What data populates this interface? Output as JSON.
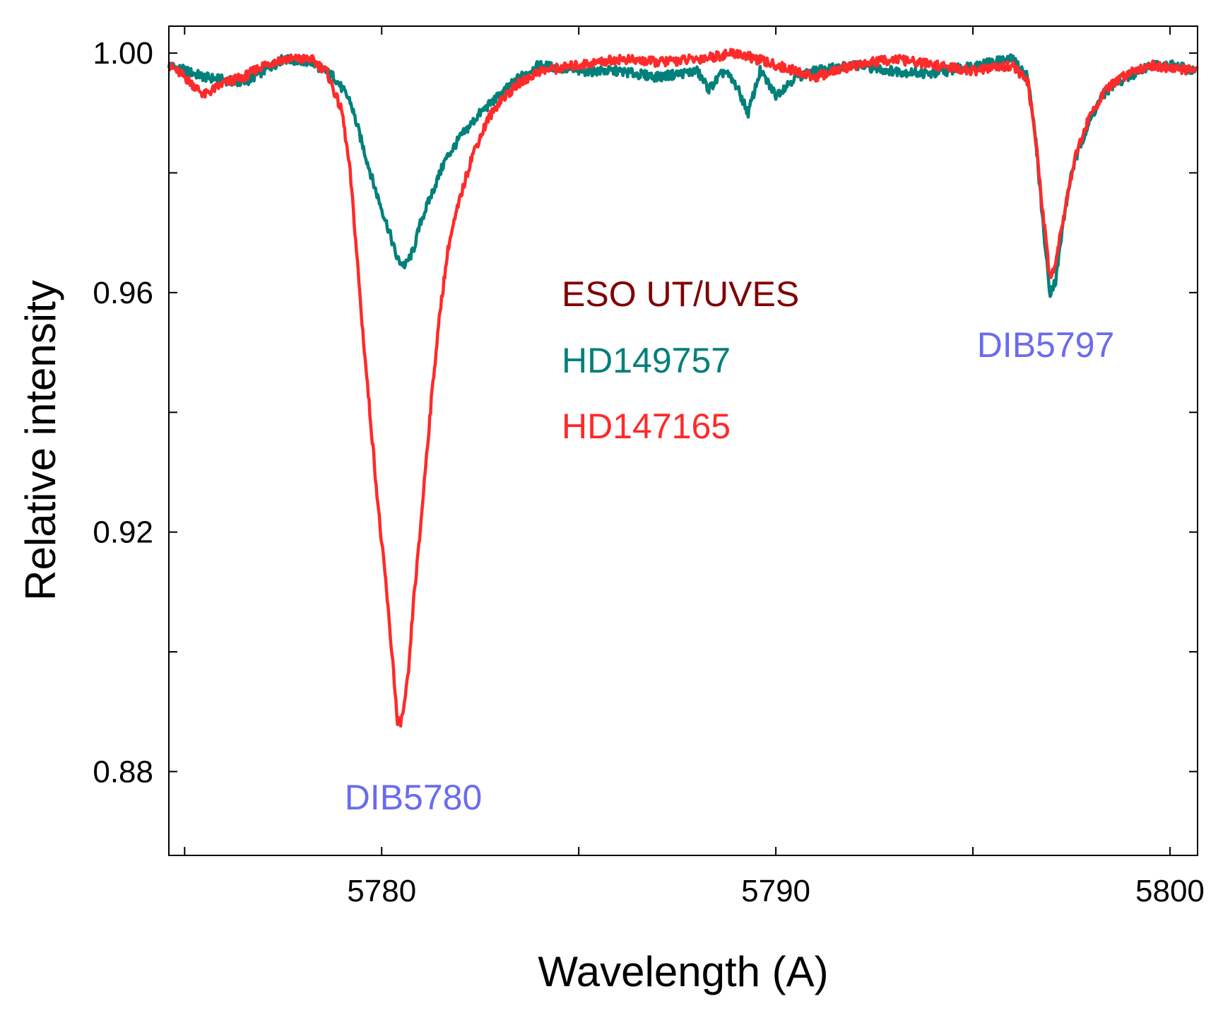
{
  "chart_data": {
    "type": "line",
    "title": "",
    "xlabel": "Wavelength (A)",
    "ylabel": "Relative intensity",
    "xlim": [
      5774.6,
      5800.7
    ],
    "ylim": [
      0.866,
      1.0045
    ],
    "x_ticks": [
      5780,
      5790,
      5800
    ],
    "x_tick_labels": [
      "5780",
      "5790",
      "5800"
    ],
    "x_minor_ticks": [
      5775,
      5785,
      5795
    ],
    "y_ticks": [
      0.88,
      0.92,
      0.96,
      1.0
    ],
    "y_tick_labels": [
      "0.88",
      "0.92",
      "0.96",
      "1.00"
    ],
    "y_minor_ticks": [
      0.9,
      0.94,
      0.98
    ],
    "grid": false,
    "legend": {
      "placement": "center",
      "title": "ESO UT/UVES",
      "title_color": "#800000",
      "entries": [
        "HD149757",
        "HD147165"
      ]
    },
    "annotations": [
      {
        "text": "DIB5780",
        "x": 5780.8,
        "y": 0.8795,
        "color": "#6b6bef"
      },
      {
        "text": "DIB5797",
        "x": 5797.0,
        "y": 0.9552,
        "color": "#6b6bef"
      }
    ],
    "series": [
      {
        "name": "HD149757",
        "color": "#00807a",
        "points": [
          [
            5774.6,
            0.998
          ],
          [
            5775.5,
            0.996
          ],
          [
            5776.5,
            0.995
          ],
          [
            5777.5,
            0.999
          ],
          [
            5778.2,
            0.9985
          ],
          [
            5778.8,
            0.996
          ],
          [
            5779.2,
            0.992
          ],
          [
            5779.5,
            0.985
          ],
          [
            5779.8,
            0.978
          ],
          [
            5780.0,
            0.974
          ],
          [
            5780.2,
            0.97
          ],
          [
            5780.4,
            0.9655
          ],
          [
            5780.6,
            0.9645
          ],
          [
            5780.8,
            0.967
          ],
          [
            5781.0,
            0.972
          ],
          [
            5781.3,
            0.977
          ],
          [
            5781.6,
            0.982
          ],
          [
            5782.0,
            0.986
          ],
          [
            5782.5,
            0.99
          ],
          [
            5783.0,
            0.993
          ],
          [
            5783.5,
            0.996
          ],
          [
            5784.0,
            0.998
          ],
          [
            5785.0,
            0.997
          ],
          [
            5786.0,
            0.997
          ],
          [
            5787.0,
            0.996
          ],
          [
            5788.0,
            0.997
          ],
          [
            5788.3,
            0.994
          ],
          [
            5788.7,
            0.997
          ],
          [
            5789.0,
            0.9945
          ],
          [
            5789.3,
            0.99
          ],
          [
            5789.6,
            0.997
          ],
          [
            5790.0,
            0.993
          ],
          [
            5790.5,
            0.996
          ],
          [
            5791.0,
            0.997
          ],
          [
            5792.0,
            0.998
          ],
          [
            5793.0,
            0.997
          ],
          [
            5794.0,
            0.9965
          ],
          [
            5795.0,
            0.998
          ],
          [
            5796.0,
            0.999
          ],
          [
            5796.4,
            0.996
          ],
          [
            5796.6,
            0.985
          ],
          [
            5796.8,
            0.97
          ],
          [
            5796.95,
            0.96
          ],
          [
            5797.1,
            0.962
          ],
          [
            5797.3,
            0.972
          ],
          [
            5797.5,
            0.98
          ],
          [
            5797.8,
            0.986
          ],
          [
            5798.2,
            0.992
          ],
          [
            5798.6,
            0.995
          ],
          [
            5799.0,
            0.996
          ],
          [
            5799.5,
            0.998
          ],
          [
            5800.0,
            0.998
          ],
          [
            5800.7,
            0.997
          ]
        ]
      },
      {
        "name": "HD147165",
        "color": "#ff2a2a",
        "points": [
          [
            5774.6,
            0.998
          ],
          [
            5775.0,
            0.996
          ],
          [
            5775.5,
            0.993
          ],
          [
            5776.0,
            0.995
          ],
          [
            5776.5,
            0.996
          ],
          [
            5777.0,
            0.998
          ],
          [
            5777.5,
            0.999
          ],
          [
            5778.2,
            0.999
          ],
          [
            5778.6,
            0.997
          ],
          [
            5779.0,
            0.99
          ],
          [
            5779.2,
            0.98
          ],
          [
            5779.35,
            0.968
          ],
          [
            5779.5,
            0.955
          ],
          [
            5779.7,
            0.94
          ],
          [
            5779.9,
            0.925
          ],
          [
            5780.0,
            0.918
          ],
          [
            5780.1,
            0.912
          ],
          [
            5780.2,
            0.904
          ],
          [
            5780.3,
            0.897
          ],
          [
            5780.4,
            0.888
          ],
          [
            5780.5,
            0.8885
          ],
          [
            5780.6,
            0.892
          ],
          [
            5780.7,
            0.898
          ],
          [
            5780.8,
            0.908
          ],
          [
            5780.95,
            0.918
          ],
          [
            5781.1,
            0.93
          ],
          [
            5781.3,
            0.945
          ],
          [
            5781.5,
            0.958
          ],
          [
            5781.7,
            0.968
          ],
          [
            5782.0,
            0.976
          ],
          [
            5782.3,
            0.983
          ],
          [
            5782.7,
            0.989
          ],
          [
            5783.0,
            0.992
          ],
          [
            5783.5,
            0.995
          ],
          [
            5784.0,
            0.997
          ],
          [
            5785.0,
            0.998
          ],
          [
            5786.0,
            0.999
          ],
          [
            5787.0,
            0.9985
          ],
          [
            5788.0,
            0.999
          ],
          [
            5789.0,
            1.0
          ],
          [
            5790.0,
            0.998
          ],
          [
            5791.0,
            0.996
          ],
          [
            5792.0,
            0.998
          ],
          [
            5793.0,
            0.999
          ],
          [
            5794.0,
            0.998
          ],
          [
            5795.0,
            0.997
          ],
          [
            5796.0,
            0.998
          ],
          [
            5796.4,
            0.995
          ],
          [
            5796.6,
            0.985
          ],
          [
            5796.8,
            0.972
          ],
          [
            5796.95,
            0.9625
          ],
          [
            5797.1,
            0.965
          ],
          [
            5797.3,
            0.973
          ],
          [
            5797.6,
            0.983
          ],
          [
            5798.0,
            0.99
          ],
          [
            5798.4,
            0.994
          ],
          [
            5799.0,
            0.997
          ],
          [
            5799.5,
            0.998
          ],
          [
            5800.0,
            0.9975
          ],
          [
            5800.7,
            0.997
          ]
        ]
      }
    ]
  }
}
